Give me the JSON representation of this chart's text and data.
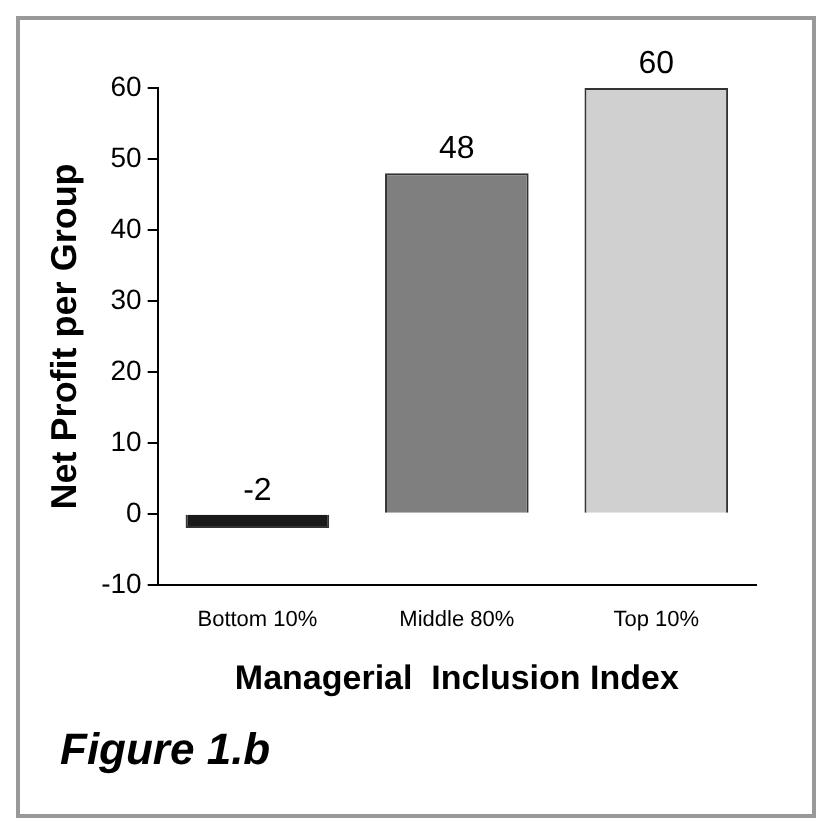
{
  "chart_data": {
    "type": "bar",
    "xlabel": "Managerial  Inclusion Index",
    "ylabel": "Net Profit per Group",
    "categories": [
      "Bottom 10%",
      "Middle 80%",
      "Top 10%"
    ],
    "values": [
      -2,
      48,
      60
    ],
    "colors": [
      "#1a1a1a",
      "#7f7f7f",
      "#d0d0d0"
    ],
    "ylim": [
      -10,
      60
    ],
    "yticks": [
      -10,
      0,
      10,
      20,
      30,
      40,
      50,
      60
    ],
    "grid": false,
    "data_labels": true,
    "annotations": [
      "Figure 1.b"
    ]
  }
}
